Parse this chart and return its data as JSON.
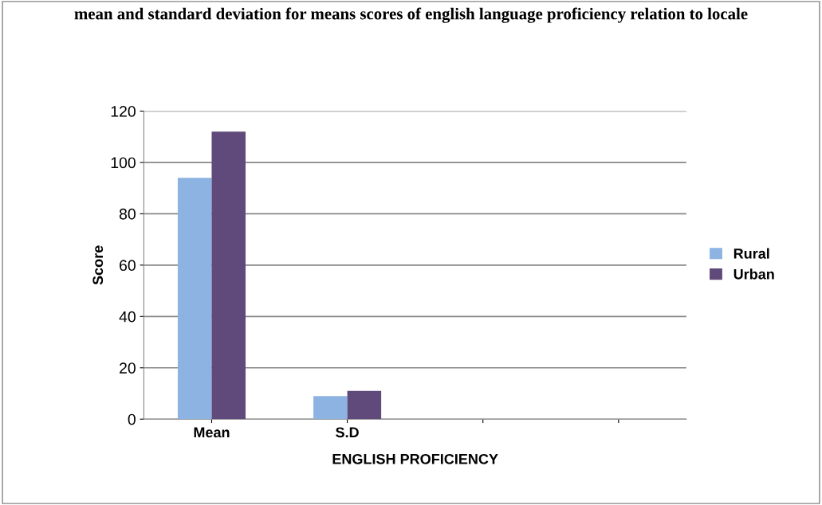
{
  "chart_data": {
    "type": "bar",
    "title": "mean and standard deviation for means scores of english language proficiency relation to locale",
    "categories": [
      "Mean",
      "S.D",
      null,
      null
    ],
    "series": [
      {
        "name": "Rural",
        "color": "#8db3e2",
        "values": [
          94,
          9,
          null,
          null
        ]
      },
      {
        "name": "Urban",
        "color": "#604a7b",
        "values": [
          112,
          11,
          null,
          null
        ]
      }
    ],
    "xlabel": "ENGLISH PROFICIENCY",
    "ylabel": "Score",
    "ylim": [
      0,
      120
    ],
    "yticks": [
      0,
      20,
      40,
      60,
      80,
      100,
      120
    ],
    "grid": "y",
    "legend": "right"
  }
}
